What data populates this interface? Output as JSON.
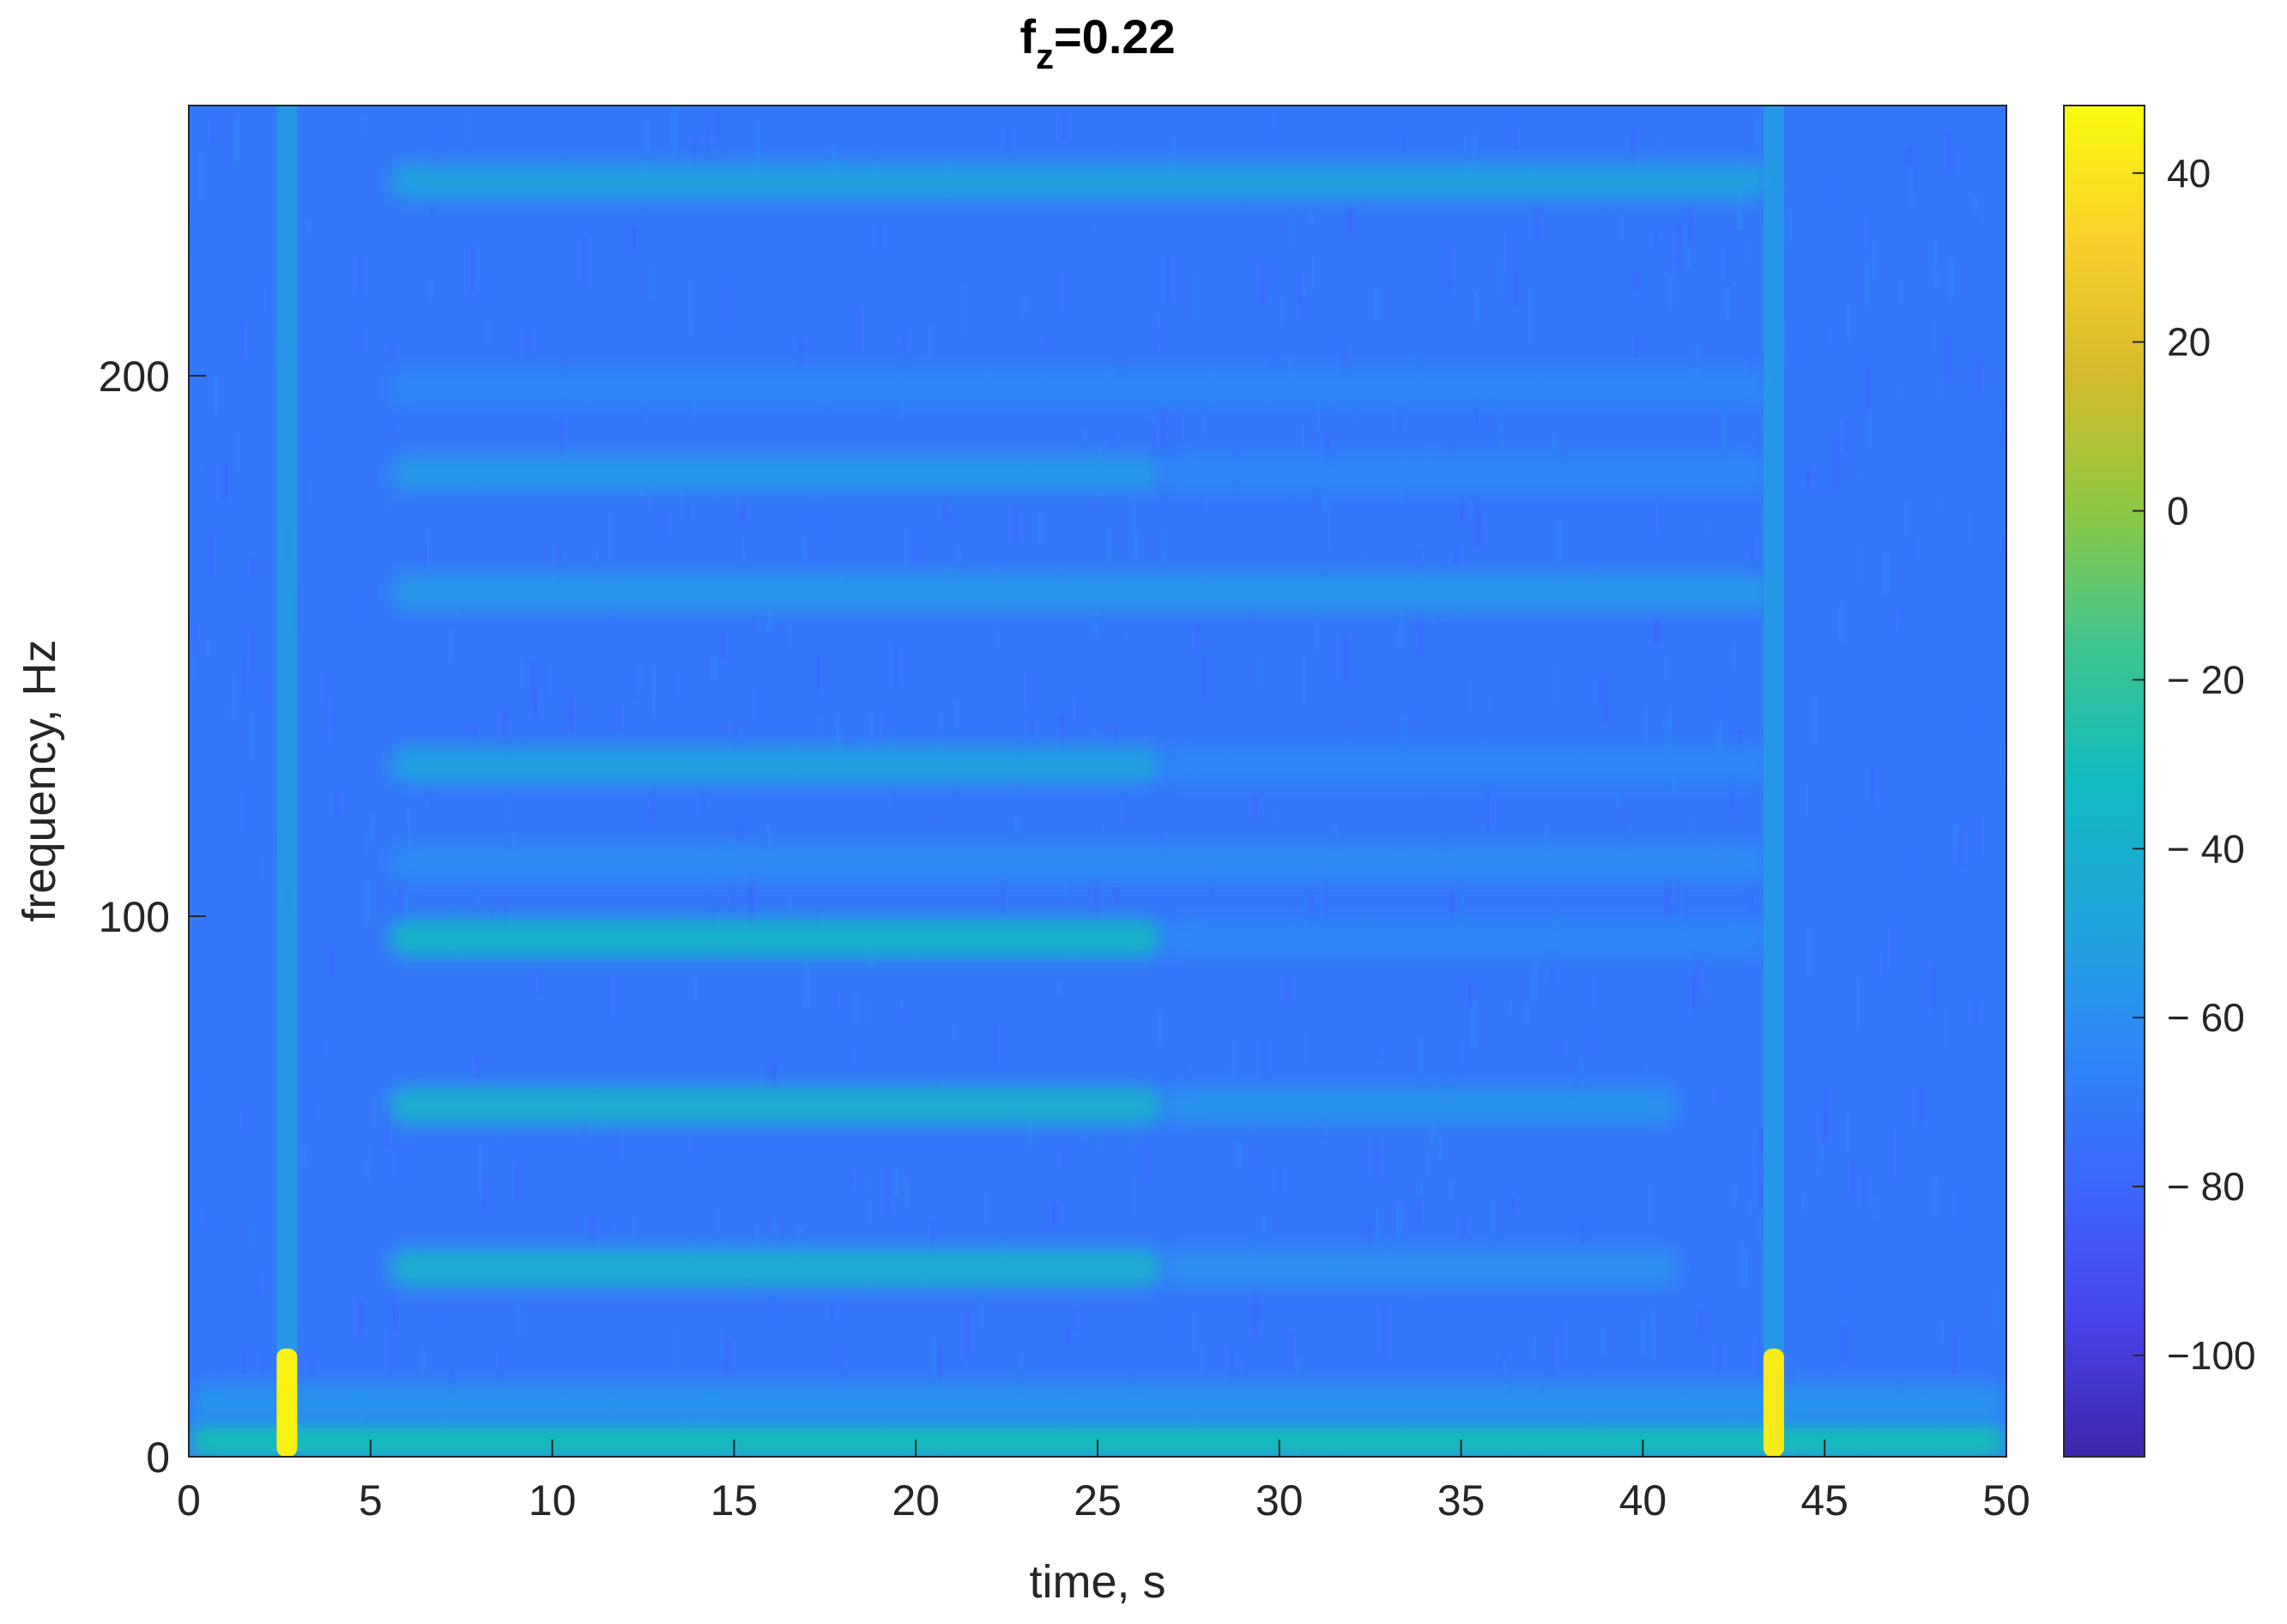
{
  "chart_data": {
    "type": "heatmap",
    "title": "f",
    "title_subscript": "z",
    "title_suffix": "=0.22",
    "xlabel": "time, s",
    "ylabel": "frequency, Hz",
    "xlim": [
      0,
      50
    ],
    "ylim": [
      0,
      250
    ],
    "xticks": [
      0,
      5,
      10,
      15,
      20,
      25,
      30,
      35,
      40,
      45,
      50
    ],
    "xtick_labels": [
      "0",
      "5",
      "10",
      "15",
      "20",
      "25",
      "30",
      "35",
      "40",
      "45",
      "50"
    ],
    "yticks": [
      0,
      100,
      200
    ],
    "ytick_labels": [
      "0",
      "100",
      "200"
    ],
    "colormap": "parula",
    "colorbar": {
      "range": [
        -112,
        48
      ],
      "ticks": [
        40,
        20,
        0,
        -20,
        -40,
        -60,
        -80,
        -100
      ],
      "tick_labels": [
        "40",
        "20",
        "0",
        "− 20",
        "− 40",
        "− 60",
        "− 80",
        "−100"
      ]
    },
    "background_level_db": -72,
    "bands": [
      {
        "t_start": 5.5,
        "t_end": 26.8,
        "f": 35,
        "level_db": -42
      },
      {
        "t_start": 26.8,
        "t_end": 41,
        "f": 35,
        "level_db": -60
      },
      {
        "t_start": 5.5,
        "t_end": 26.8,
        "f": 65,
        "level_db": -42
      },
      {
        "t_start": 26.8,
        "t_end": 41,
        "f": 65,
        "level_db": -58
      },
      {
        "t_start": 5.5,
        "t_end": 26.8,
        "f": 96,
        "level_db": -38
      },
      {
        "t_start": 26.8,
        "t_end": 43.5,
        "f": 96,
        "level_db": -64
      },
      {
        "t_start": 5.5,
        "t_end": 43.5,
        "f": 110,
        "level_db": -62
      },
      {
        "t_start": 5.5,
        "t_end": 26.8,
        "f": 128,
        "level_db": -52
      },
      {
        "t_start": 26.8,
        "t_end": 43.5,
        "f": 128,
        "level_db": -64
      },
      {
        "t_start": 5.5,
        "t_end": 43.5,
        "f": 160,
        "level_db": -56
      },
      {
        "t_start": 5.5,
        "t_end": 26.8,
        "f": 182,
        "level_db": -56
      },
      {
        "t_start": 26.8,
        "t_end": 43.5,
        "f": 182,
        "level_db": -64
      },
      {
        "t_start": 5.5,
        "t_end": 43.5,
        "f": 198,
        "level_db": -64
      },
      {
        "t_start": 5.5,
        "t_end": 43.5,
        "f": 236,
        "level_db": -52
      },
      {
        "t_start": 0,
        "t_end": 50,
        "f": 3,
        "level_db": -30
      },
      {
        "t_start": 0,
        "t_end": 50,
        "f": 10,
        "level_db": -58
      }
    ],
    "transients": [
      {
        "t": 2.7,
        "f_max": 20,
        "level_db": 45
      },
      {
        "t": 43.6,
        "f_max": 20,
        "level_db": 42
      }
    ]
  }
}
